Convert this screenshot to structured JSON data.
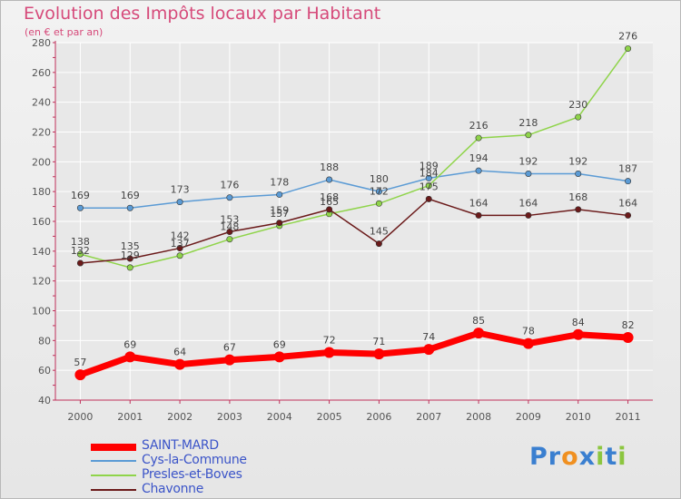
{
  "title": "Evolution des Impôts locaux par Habitant",
  "subtitle": "(en € et par an)",
  "logo": [
    "P",
    "r",
    "o",
    "x",
    "i",
    "t",
    "i"
  ],
  "colors": {
    "title": "#d64a7a",
    "axis": "#c0305a",
    "grid": "#ffffff",
    "legend_text": "#3b54c8",
    "logo": [
      "#3a7fd0",
      "#3a7fd0",
      "#f09020",
      "#3a7fd0",
      "#8cc63f",
      "#3a7fd0",
      "#8cc63f"
    ]
  },
  "chart_data": {
    "type": "line",
    "title": "Evolution des Impôts locaux par Habitant",
    "subtitle": "(en € et par an)",
    "categories": [
      "2000",
      "2001",
      "2002",
      "2003",
      "2004",
      "2005",
      "2006",
      "2007",
      "2008",
      "2009",
      "2010",
      "2011"
    ],
    "ylim": [
      40,
      280
    ],
    "yticks": [
      40,
      60,
      80,
      100,
      120,
      140,
      160,
      180,
      200,
      220,
      240,
      260,
      280
    ],
    "grid": true,
    "legend_position": "bottom-left",
    "series": [
      {
        "name": "SAINT-MARD",
        "color": "#ff0000",
        "values": [
          57,
          69,
          64,
          67,
          69,
          72,
          71,
          74,
          85,
          78,
          84,
          82
        ]
      },
      {
        "name": "Cys-la-Commune",
        "color": "#5b9bd5",
        "values": [
          169,
          169,
          173,
          176,
          178,
          188,
          180,
          189,
          194,
          192,
          192,
          187
        ]
      },
      {
        "name": "Presles-et-Boves",
        "color": "#8fd44a",
        "values": [
          138,
          129,
          137,
          148,
          157,
          165,
          172,
          184,
          216,
          218,
          230,
          276
        ]
      },
      {
        "name": "Chavonne",
        "color": "#6b1a1a",
        "values": [
          132,
          135,
          142,
          153,
          159,
          168,
          145,
          175,
          164,
          164,
          168,
          164
        ]
      }
    ]
  }
}
